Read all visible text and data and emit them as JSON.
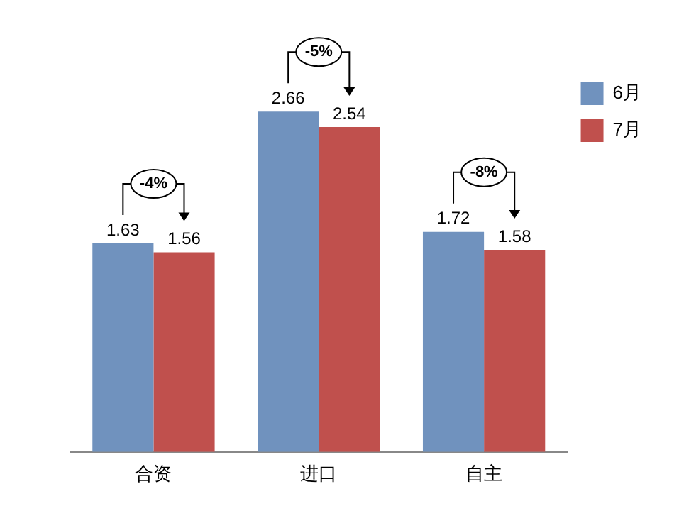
{
  "chart_data": {
    "type": "bar",
    "categories": [
      "合资",
      "进口",
      "自主"
    ],
    "series": [
      {
        "name": "6月",
        "color": "#7092be",
        "values": [
          1.63,
          2.66,
          1.72
        ]
      },
      {
        "name": "7月",
        "color": "#c0504d",
        "values": [
          1.56,
          2.54,
          1.58
        ]
      }
    ],
    "data_labels": true,
    "legend": "top right",
    "grid": false,
    "annotations": [
      "-4%",
      "-5%",
      "-8%"
    ]
  }
}
